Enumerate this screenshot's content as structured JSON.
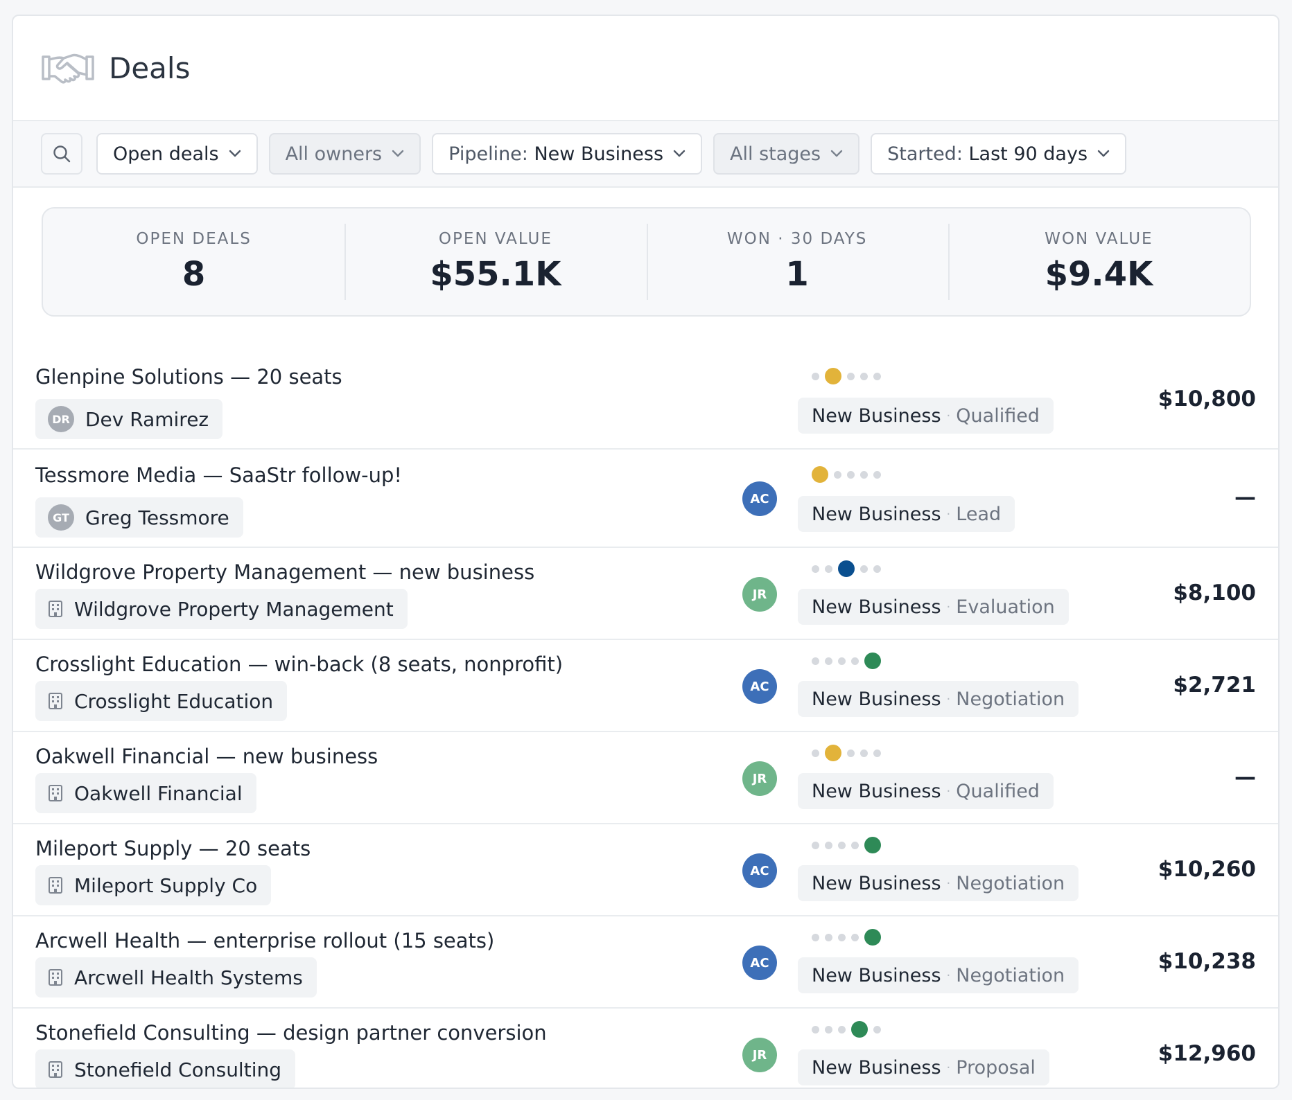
{
  "header": {
    "title": "Deals",
    "icon": "handshake-icon"
  },
  "filters": {
    "search_icon": "search-icon",
    "open_deals": "Open deals",
    "owners": "All owners",
    "pipeline_prefix": "Pipeline:",
    "pipeline_value": "New Business",
    "stages": "All stages",
    "started_prefix": "Started:",
    "started_value": "Last 90 days"
  },
  "stats": [
    {
      "label": "OPEN DEALS",
      "value": "8"
    },
    {
      "label": "OPEN VALUE",
      "value": "$55.1K"
    },
    {
      "label": "WON · 30 DAYS",
      "value": "1"
    },
    {
      "label": "WON VALUE",
      "value": "$9.4K"
    }
  ],
  "colors": {
    "stage_lead": "#e2b33a",
    "stage_qualified": "#e2b33a",
    "stage_evaluation": "#0a4f8f",
    "stage_proposal": "#2e8a57",
    "stage_negotiation": "#2e8a57",
    "owner_AC": "#3d6fb8",
    "owner_JR": "#6fb58a"
  },
  "deals": [
    {
      "title": "Glenpine Solutions — 20 seats",
      "contact": "Dev Ramirez",
      "contact_type": "person",
      "contact_initials": "DR",
      "owner": "",
      "stage_index": 1,
      "stage_color": "#e2b33a",
      "pipeline": "New Business",
      "stage": "Qualified",
      "amount": "$10,800"
    },
    {
      "title": "Tessmore Media — SaaStr follow-up!",
      "contact": "Greg Tessmore",
      "contact_type": "person",
      "contact_initials": "GT",
      "owner": "AC",
      "stage_index": 0,
      "stage_color": "#e2b33a",
      "pipeline": "New Business",
      "stage": "Lead",
      "amount": "—"
    },
    {
      "title": "Wildgrove Property Management — new business",
      "contact": "Wildgrove Property Management",
      "contact_type": "company",
      "owner": "JR",
      "stage_index": 2,
      "stage_color": "#0a4f8f",
      "pipeline": "New Business",
      "stage": "Evaluation",
      "amount": "$8,100"
    },
    {
      "title": "Crosslight Education — win-back (8 seats, nonprofit)",
      "contact": "Crosslight Education",
      "contact_type": "company",
      "owner": "AC",
      "stage_index": 4,
      "stage_color": "#2e8a57",
      "pipeline": "New Business",
      "stage": "Negotiation",
      "amount": "$2,721"
    },
    {
      "title": "Oakwell Financial — new business",
      "contact": "Oakwell Financial",
      "contact_type": "company",
      "owner": "JR",
      "stage_index": 1,
      "stage_color": "#e2b33a",
      "pipeline": "New Business",
      "stage": "Qualified",
      "amount": "—"
    },
    {
      "title": "Mileport Supply — 20 seats",
      "contact": "Mileport Supply Co",
      "contact_type": "company",
      "owner": "AC",
      "stage_index": 4,
      "stage_color": "#2e8a57",
      "pipeline": "New Business",
      "stage": "Negotiation",
      "amount": "$10,260"
    },
    {
      "title": "Arcwell Health — enterprise rollout (15 seats)",
      "contact": "Arcwell Health Systems",
      "contact_type": "company",
      "owner": "AC",
      "stage_index": 4,
      "stage_color": "#2e8a57",
      "pipeline": "New Business",
      "stage": "Negotiation",
      "amount": "$10,238"
    },
    {
      "title": "Stonefield Consulting — design partner conversion",
      "contact": "Stonefield Consulting",
      "contact_type": "company",
      "owner": "JR",
      "stage_index": 3,
      "stage_color": "#2e8a57",
      "pipeline": "New Business",
      "stage": "Proposal",
      "amount": "$12,960"
    }
  ]
}
